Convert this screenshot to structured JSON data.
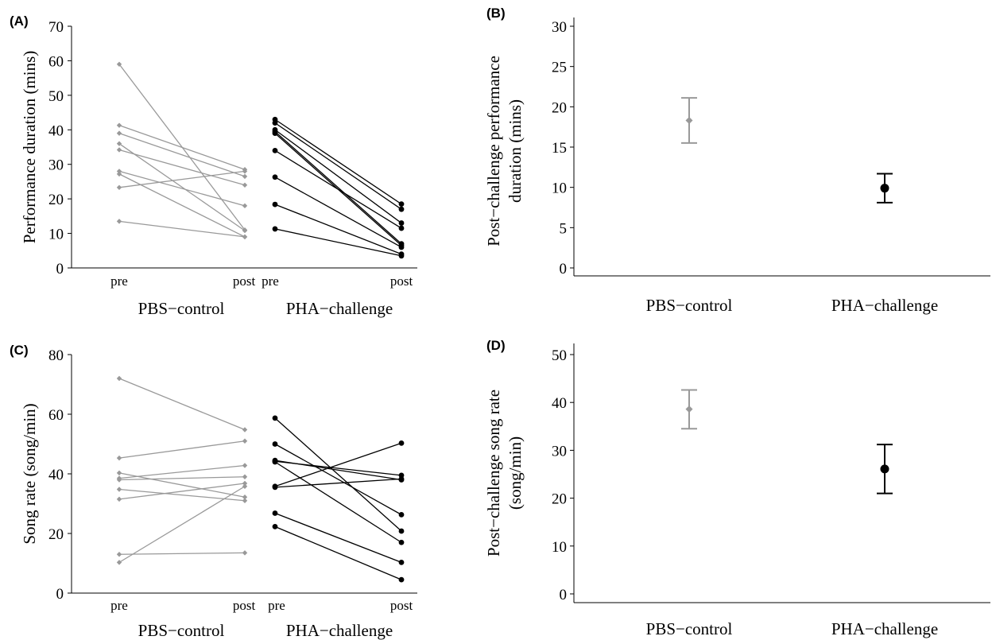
{
  "colors": {
    "control": "#999999",
    "challenge": "#000000",
    "axis": "#000000"
  },
  "chart_data": [
    {
      "type": "line",
      "panel": "(A)",
      "ylabel": "Performance duration (mins)",
      "ylim": [
        0,
        70
      ],
      "yticks": [
        0,
        10,
        20,
        30,
        40,
        50,
        60,
        70
      ],
      "x_tick_labels": {
        "pre": "pre",
        "post": "post"
      },
      "groups": [
        {
          "name": "PBS−control",
          "marker": "diamond",
          "pairs": [
            [
              59,
              11
            ],
            [
              41.3,
              28.5
            ],
            [
              39,
              26.5
            ],
            [
              36,
              10.8
            ],
            [
              34.2,
              24
            ],
            [
              28,
              18
            ],
            [
              27.2,
              9
            ],
            [
              23.3,
              28
            ],
            [
              13.5,
              9
            ]
          ]
        },
        {
          "name": "PHA−challenge",
          "marker": "circle",
          "pairs": [
            [
              43,
              18.5
            ],
            [
              42,
              17
            ],
            [
              40,
              13
            ],
            [
              39.5,
              7
            ],
            [
              39,
              6.5
            ],
            [
              34,
              11.5
            ],
            [
              26.3,
              6
            ],
            [
              18.4,
              4
            ],
            [
              11.3,
              3.5
            ]
          ]
        }
      ]
    },
    {
      "type": "scatter",
      "panel": "(B)",
      "ylabel_lines": [
        "Post−challenge performance",
        "duration (mins)"
      ],
      "ylim": [
        0,
        30
      ],
      "yticks": [
        0,
        5,
        10,
        15,
        20,
        25,
        30
      ],
      "categories": [
        "PBS−control",
        "PHA−challenge"
      ],
      "points": [
        {
          "mean": 18.3,
          "lower": 15.5,
          "upper": 21.1,
          "marker": "diamond"
        },
        {
          "mean": 9.9,
          "lower": 8.1,
          "upper": 11.7,
          "marker": "circle"
        }
      ]
    },
    {
      "type": "line",
      "panel": "(C)",
      "ylabel": "Song rate (song/min)",
      "ylim": [
        0,
        80
      ],
      "yticks": [
        0,
        20,
        40,
        60,
        80
      ],
      "x_tick_labels": {
        "pre": "pre",
        "post": "post"
      },
      "groups": [
        {
          "name": "PBS−control",
          "marker": "diamond",
          "pairs": [
            [
              72,
              54.8
            ],
            [
              45.3,
              51
            ],
            [
              40.3,
              32.2
            ],
            [
              38.5,
              42.8
            ],
            [
              38,
              39
            ],
            [
              34.8,
              31
            ],
            [
              31.5,
              36.8
            ],
            [
              13,
              13.5
            ],
            [
              10.3,
              35.8
            ]
          ]
        },
        {
          "name": "PHA−challenge",
          "marker": "circle",
          "pairs": [
            [
              58.7,
              20.8
            ],
            [
              50,
              26.3
            ],
            [
              44.5,
              38
            ],
            [
              44.2,
              39.5
            ],
            [
              44,
              17
            ],
            [
              35.8,
              50.3
            ],
            [
              35.5,
              38.3
            ],
            [
              26.8,
              10.3
            ],
            [
              22.3,
              4.5
            ]
          ]
        }
      ]
    },
    {
      "type": "scatter",
      "panel": "(D)",
      "ylabel_lines": [
        "Post−challenge song rate",
        "(song/min)"
      ],
      "ylim": [
        0,
        50
      ],
      "yticks": [
        0,
        10,
        20,
        30,
        40,
        50
      ],
      "categories": [
        "PBS−control",
        "PHA−challenge"
      ],
      "points": [
        {
          "mean": 38.6,
          "lower": 34.5,
          "upper": 42.6,
          "marker": "diamond"
        },
        {
          "mean": 26.1,
          "lower": 21,
          "upper": 31.2,
          "marker": "circle"
        }
      ]
    }
  ]
}
